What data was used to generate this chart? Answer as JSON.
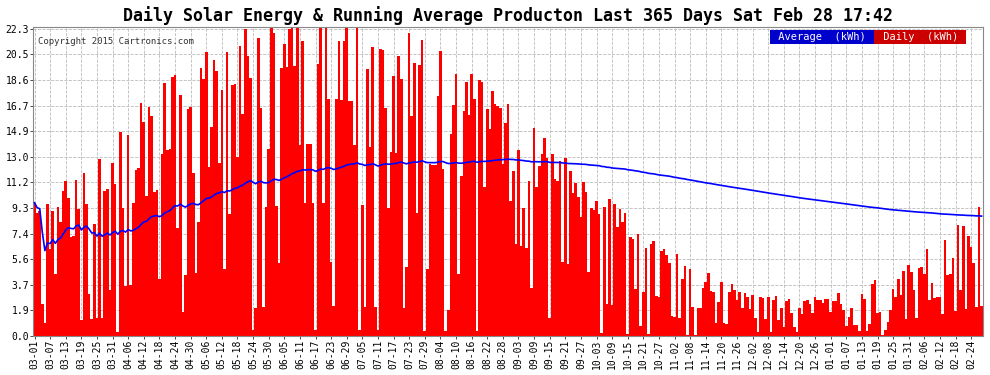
{
  "title": "Daily Solar Energy & Running Average Producton Last 365 Days Sat Feb 28 17:42",
  "copyright": "Copyright 2015 Cartronics.com",
  "legend_avg": "Average  (kWh)",
  "legend_daily": "Daily  (kWh)",
  "yticks": [
    0.0,
    1.9,
    3.7,
    5.6,
    7.4,
    9.3,
    11.2,
    13.0,
    14.9,
    16.7,
    18.6,
    20.5,
    22.3
  ],
  "ymax": 22.3,
  "ymin": 0.0,
  "bar_color": "#ff0000",
  "avg_color": "#0000ff",
  "bg_color": "#ffffff",
  "grid_color": "#bbbbbb",
  "title_color": "#000000",
  "legend_avg_bg": "#0000cc",
  "legend_daily_bg": "#cc0000",
  "title_fontsize": 12,
  "tick_fontsize": 7,
  "tick_step": 6
}
